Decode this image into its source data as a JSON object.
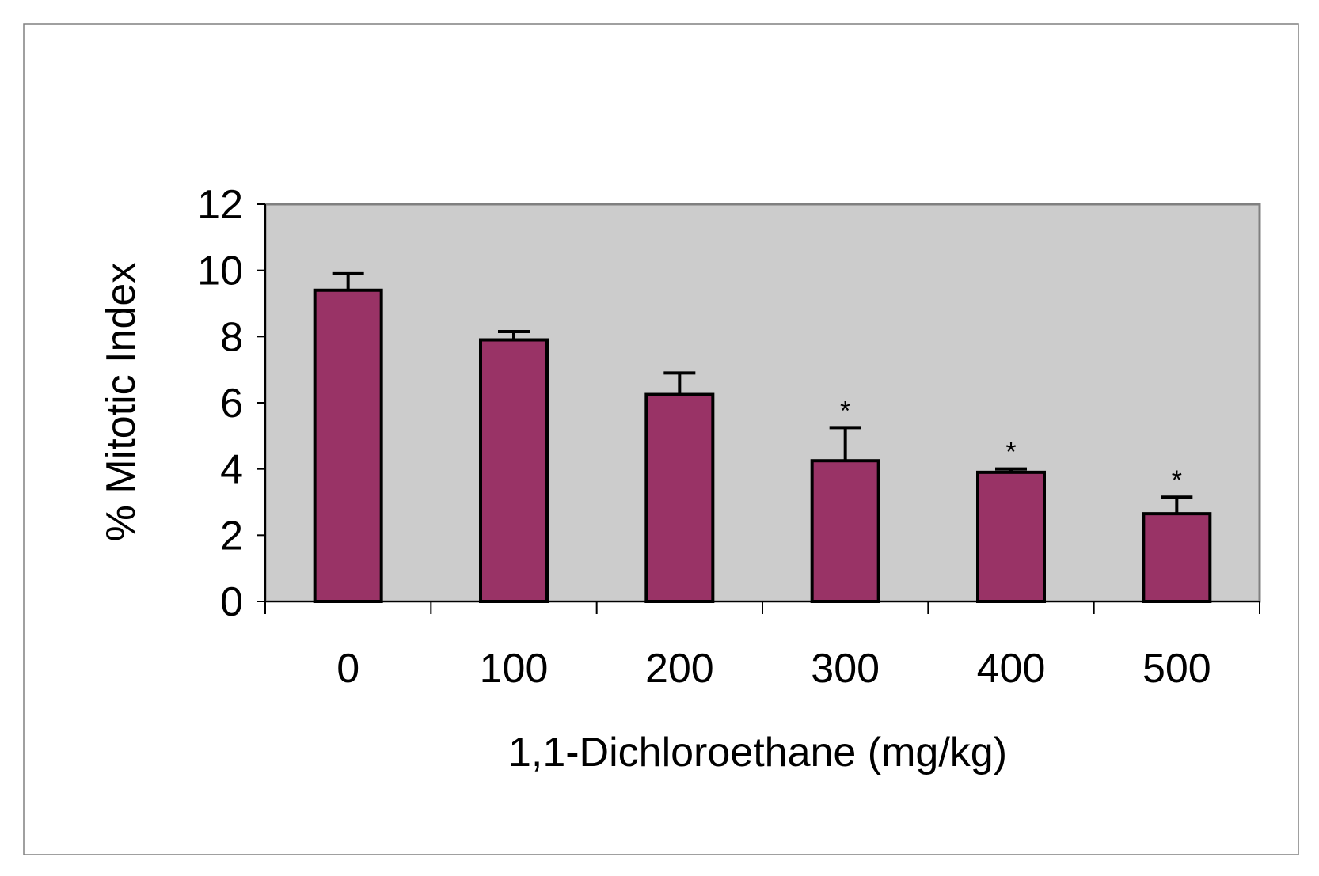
{
  "colors": {
    "bar_fill": "#993366",
    "plot_background": "#cccccc",
    "bar_stroke": "#000000",
    "frame_stroke": "#808080"
  },
  "chart_data": {
    "type": "bar",
    "title": "",
    "xlabel": "1,1-Dichloroethane (mg/kg)",
    "ylabel": "% Mitotic Index",
    "categories": [
      "0",
      "100",
      "200",
      "300",
      "400",
      "500"
    ],
    "values": [
      9.4,
      7.9,
      6.25,
      4.25,
      3.9,
      2.65
    ],
    "error_bars": [
      0.5,
      0.25,
      0.65,
      1.0,
      0.1,
      0.5
    ],
    "significance_markers": [
      "",
      "",
      "",
      "*",
      "*",
      "*"
    ],
    "ylim": [
      0,
      12
    ],
    "yticks": [
      "0",
      "2",
      "4",
      "6",
      "8",
      "10",
      "12"
    ],
    "grid": false,
    "legend": "none"
  }
}
